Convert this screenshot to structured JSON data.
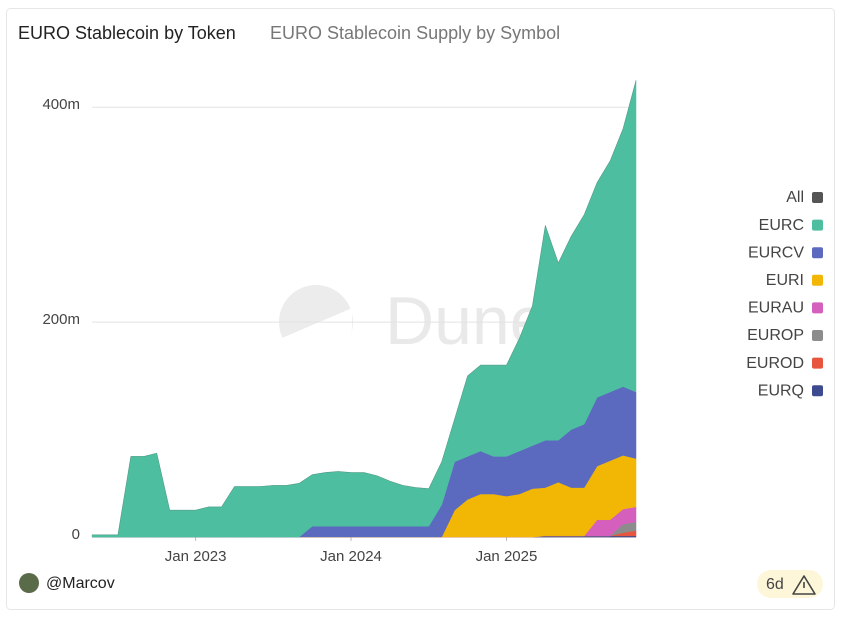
{
  "chart_data": {
    "type": "stacked_area",
    "title": "EURO Stablecoin by Token",
    "subtitle": "EURO Stablecoin Supply by Symbol",
    "watermark": "Dune",
    "author": "@Marcov",
    "age": "6d",
    "x": [
      "2022-05",
      "2022-06",
      "2022-07",
      "2022-08",
      "2022-09",
      "2022-10",
      "2022-11",
      "2022-12",
      "2023-01",
      "2023-02",
      "2023-03",
      "2023-04",
      "2023-05",
      "2023-06",
      "2023-07",
      "2023-08",
      "2023-09",
      "2023-10",
      "2023-11",
      "2023-12",
      "2024-01",
      "2024-02",
      "2024-03",
      "2024-04",
      "2024-05",
      "2024-06",
      "2024-07",
      "2024-08",
      "2024-09",
      "2024-10",
      "2024-11",
      "2024-12",
      "2025-01",
      "2025-02",
      "2025-03",
      "2025-04",
      "2025-05",
      "2025-06",
      "2025-07",
      "2025-08",
      "2025-09",
      "2025-10",
      "2025-11"
    ],
    "xticks": [
      {
        "value": "2023-01",
        "label": "Jan 2023"
      },
      {
        "value": "2024-01",
        "label": "Jan 2024"
      },
      {
        "value": "2025-01",
        "label": "Jan 2025"
      }
    ],
    "ylim": [
      0,
      430000000
    ],
    "yticks": [
      {
        "value": 0,
        "label": "0"
      },
      {
        "value": 200000000,
        "label": "200m"
      },
      {
        "value": 400000000,
        "label": "400m"
      }
    ],
    "grid": true,
    "legend": "right",
    "series": [
      {
        "name": "All",
        "color": "#555555",
        "mode": "line",
        "values": [
          2000000,
          2000000,
          2000000,
          75000000,
          75000000,
          78000000,
          25000000,
          25000000,
          25000000,
          28000000,
          28000000,
          47000000,
          47000000,
          47000000,
          48000000,
          48000000,
          50000000,
          58000000,
          60000000,
          61000000,
          60000000,
          60000000,
          57000000,
          52000000,
          48000000,
          46000000,
          45000000,
          70000000,
          110000000,
          150000000,
          160000000,
          160000000,
          160000000,
          185000000,
          215000000,
          290000000,
          255000000,
          280000000,
          300000000,
          330000000,
          350000000,
          380000000,
          425000000
        ]
      },
      {
        "name": "EURC",
        "color": "#4dbfa0",
        "values": [
          2000000,
          2000000,
          2000000,
          75000000,
          75000000,
          78000000,
          25000000,
          25000000,
          25000000,
          28000000,
          28000000,
          47000000,
          47000000,
          47000000,
          48000000,
          48000000,
          50000000,
          48000000,
          50000000,
          51000000,
          50000000,
          50000000,
          47000000,
          42000000,
          38000000,
          36000000,
          35000000,
          40000000,
          40000000,
          75000000,
          80000000,
          85000000,
          85000000,
          105000000,
          130000000,
          200000000,
          165000000,
          180000000,
          195000000,
          200000000,
          215000000,
          240000000,
          290000000
        ]
      },
      {
        "name": "EURCV",
        "color": "#5b6abf",
        "values": [
          0,
          0,
          0,
          0,
          0,
          0,
          0,
          0,
          0,
          0,
          0,
          0,
          0,
          0,
          0,
          0,
          0,
          10000000,
          10000000,
          10000000,
          10000000,
          10000000,
          10000000,
          10000000,
          10000000,
          10000000,
          10000000,
          30000000,
          45000000,
          40000000,
          40000000,
          35000000,
          37000000,
          40000000,
          40000000,
          44000000,
          39000000,
          54000000,
          59000000,
          64000000,
          64000000,
          64000000,
          62000000
        ]
      },
      {
        "name": "EURI",
        "color": "#f2b705",
        "values": [
          0,
          0,
          0,
          0,
          0,
          0,
          0,
          0,
          0,
          0,
          0,
          0,
          0,
          0,
          0,
          0,
          0,
          0,
          0,
          0,
          0,
          0,
          0,
          0,
          0,
          0,
          0,
          0,
          25000000,
          35000000,
          40000000,
          40000000,
          38000000,
          40000000,
          45000000,
          45000000,
          50000000,
          45000000,
          45000000,
          50000000,
          55000000,
          50000000,
          45000000
        ]
      },
      {
        "name": "EURAU",
        "color": "#d45fbd",
        "values": [
          0,
          0,
          0,
          0,
          0,
          0,
          0,
          0,
          0,
          0,
          0,
          0,
          0,
          0,
          0,
          0,
          0,
          0,
          0,
          0,
          0,
          0,
          0,
          0,
          0,
          0,
          0,
          0,
          0,
          0,
          0,
          0,
          0,
          0,
          0,
          0,
          0,
          0,
          0,
          15000000,
          15000000,
          14000000,
          14000000
        ]
      },
      {
        "name": "EUROP",
        "color": "#8c8c8c",
        "values": [
          0,
          0,
          0,
          0,
          0,
          0,
          0,
          0,
          0,
          0,
          0,
          0,
          0,
          0,
          0,
          0,
          0,
          0,
          0,
          0,
          0,
          0,
          0,
          0,
          0,
          0,
          0,
          0,
          0,
          0,
          0,
          0,
          0,
          0,
          0,
          0,
          0,
          0,
          0,
          0,
          0,
          8000000,
          8000000
        ]
      },
      {
        "name": "EUROD",
        "color": "#e8553f",
        "values": [
          0,
          0,
          0,
          0,
          0,
          0,
          0,
          0,
          0,
          0,
          0,
          0,
          0,
          0,
          0,
          0,
          0,
          0,
          0,
          0,
          0,
          0,
          0,
          0,
          0,
          0,
          0,
          0,
          0,
          0,
          0,
          0,
          0,
          0,
          0,
          0,
          0,
          0,
          0,
          0,
          0,
          3000000,
          5000000
        ]
      },
      {
        "name": "EURQ",
        "color": "#3d4a8f",
        "values": [
          0,
          0,
          0,
          0,
          0,
          0,
          0,
          0,
          0,
          0,
          0,
          0,
          0,
          0,
          0,
          0,
          0,
          0,
          0,
          0,
          0,
          0,
          0,
          0,
          0,
          0,
          0,
          0,
          0,
          0,
          0,
          0,
          0,
          0,
          0,
          1000000,
          1000000,
          1000000,
          1000000,
          1000000,
          1000000,
          1000000,
          1000000
        ]
      }
    ]
  }
}
